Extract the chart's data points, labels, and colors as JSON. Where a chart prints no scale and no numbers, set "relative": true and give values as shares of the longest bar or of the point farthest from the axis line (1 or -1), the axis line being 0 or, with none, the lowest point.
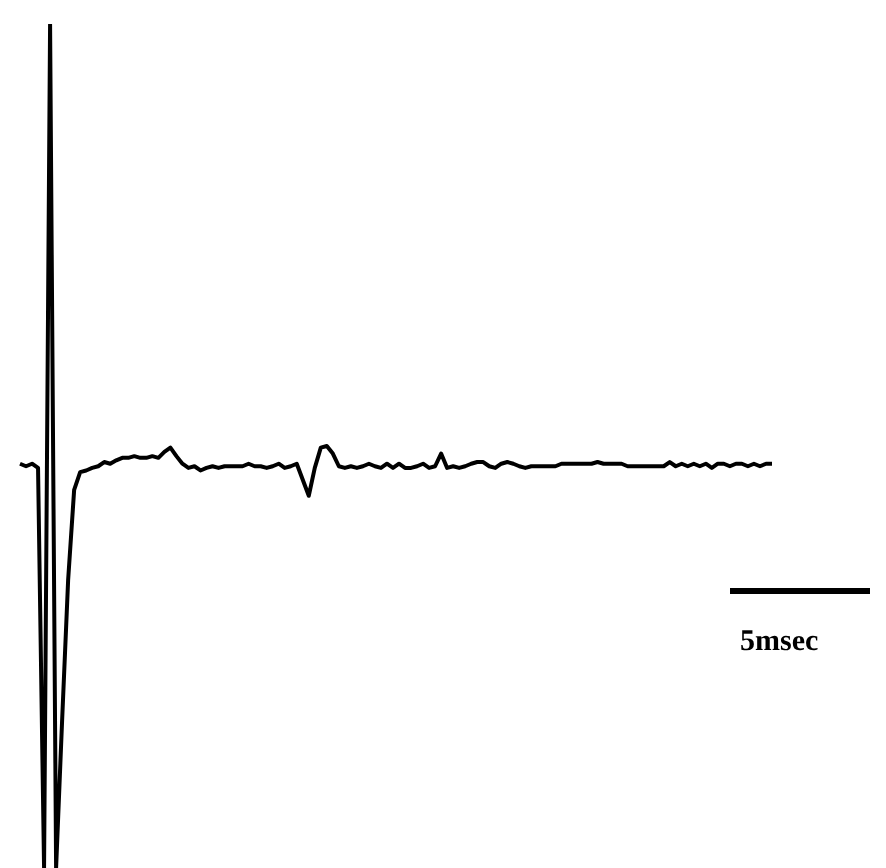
{
  "chart_data": {
    "type": "line",
    "relative": true,
    "marker": "none",
    "line_style": "solid",
    "annotations": [
      "5msec"
    ],
    "categories": [
      null,
      null,
      null,
      null,
      null,
      null,
      null,
      null,
      null,
      null,
      null,
      null,
      null,
      null,
      null,
      null,
      null,
      null,
      null,
      null,
      null,
      null,
      null,
      null,
      null,
      null,
      null,
      null,
      null,
      null,
      null,
      null,
      null,
      null,
      null,
      null,
      null,
      null,
      null,
      null,
      null,
      null,
      null,
      null,
      null,
      null,
      null,
      null,
      null,
      null,
      null,
      null,
      null,
      null,
      null,
      null,
      null,
      null,
      null,
      null,
      null,
      null,
      null,
      null,
      null,
      null,
      null,
      null,
      null,
      null,
      null,
      null,
      null,
      null,
      null,
      null,
      null,
      null,
      null,
      null,
      null,
      null,
      null,
      null,
      null,
      null,
      null,
      null,
      null,
      null,
      null,
      null,
      null,
      null,
      null,
      null,
      null,
      null,
      null,
      null,
      null,
      null,
      null,
      null,
      null,
      null,
      null,
      null,
      null,
      null,
      null,
      null,
      null,
      null,
      null,
      null,
      null,
      null,
      null,
      null,
      null,
      null,
      null,
      null,
      null,
      null
    ],
    "series": [
      {
        "color": "#000000",
        "values": [
          0.479,
          0.476,
          0.479,
          0.474,
          0,
          1,
          0,
          0.175,
          0.341,
          0.448,
          0.469,
          0.471,
          0.474,
          0.476,
          0.481,
          0.479,
          0.483,
          0.486,
          0.486,
          0.488,
          0.486,
          0.486,
          0.488,
          0.486,
          0.493,
          0.498,
          0.488,
          0.479,
          0.474,
          0.476,
          0.471,
          0.474,
          0.476,
          0.474,
          0.476,
          0.476,
          0.476,
          0.476,
          0.479,
          0.476,
          0.476,
          0.474,
          0.476,
          0.479,
          0.474,
          0.476,
          0.479,
          0.46,
          0.441,
          0.474,
          0.498,
          0.5,
          0.491,
          0.476,
          0.474,
          0.476,
          0.474,
          0.476,
          0.479,
          0.476,
          0.474,
          0.479,
          0.474,
          0.479,
          0.474,
          0.474,
          0.476,
          0.479,
          0.474,
          0.476,
          0.491,
          0.474,
          0.476,
          0.474,
          0.476,
          0.479,
          0.481,
          0.481,
          0.476,
          0.474,
          0.479,
          0.481,
          0.479,
          0.476,
          0.474,
          0.476,
          0.476,
          0.476,
          0.476,
          0.476,
          0.479,
          0.479,
          0.479,
          0.479,
          0.479,
          0.479,
          0.481,
          0.479,
          0.479,
          0.479,
          0.479,
          0.476,
          0.476,
          0.476,
          0.476,
          0.476,
          0.476,
          0.476,
          0.481,
          0.476,
          0.479,
          0.476,
          0.479,
          0.476,
          0.479,
          0.474,
          0.479,
          0.479,
          0.476,
          0.479,
          0.479,
          0.476,
          0.479,
          0.476,
          0.479,
          0.479
        ]
      }
    ]
  }
}
